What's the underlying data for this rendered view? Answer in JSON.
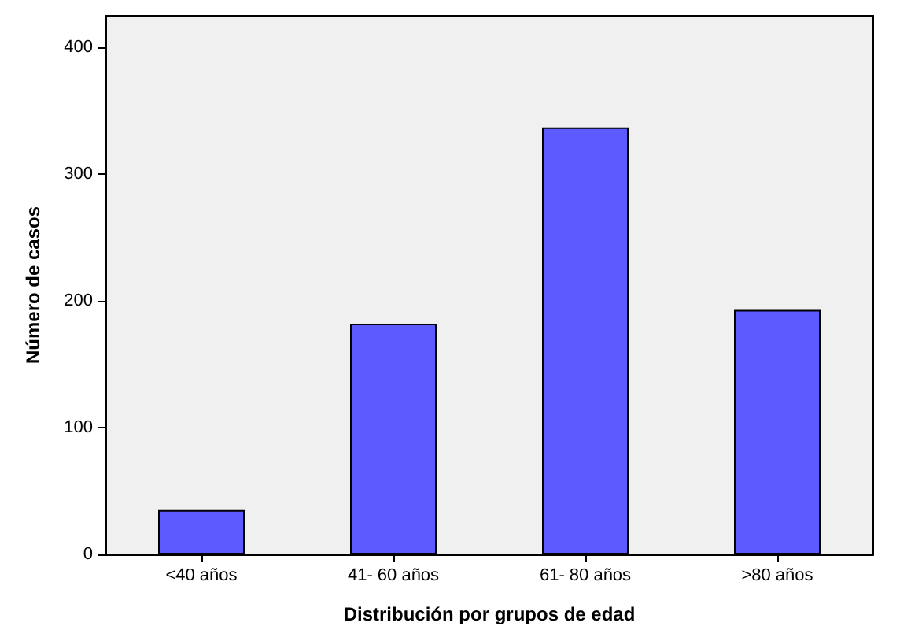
{
  "chart_data": {
    "type": "bar",
    "xlabel": "Distribución por grupos de edad",
    "ylabel": "Número de casos",
    "categories": [
      "<40 años",
      "41- 60 años",
      "61- 80 años",
      ">80 años"
    ],
    "values": [
      35,
      182,
      337,
      193
    ],
    "color": "#5b5bff",
    "ylim": [
      0,
      425
    ],
    "yticks": [
      0,
      100,
      200,
      300,
      400
    ],
    "grid": false
  }
}
